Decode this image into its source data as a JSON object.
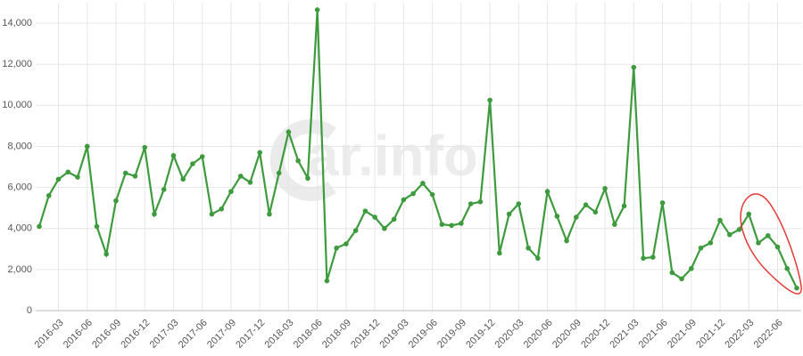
{
  "chart_data": {
    "type": "line",
    "watermark": "ar.info",
    "categories": [
      null,
      null,
      "2016-03",
      null,
      null,
      "2016-06",
      null,
      null,
      "2016-09",
      null,
      null,
      "2016-12",
      null,
      null,
      "2017-03",
      null,
      null,
      "2017-06",
      null,
      null,
      "2017-09",
      null,
      null,
      "2017-12",
      null,
      null,
      "2018-03",
      null,
      null,
      "2018-06",
      null,
      null,
      "2018-09",
      null,
      null,
      "2018-12",
      null,
      null,
      "2019-03",
      null,
      null,
      "2019-06",
      null,
      null,
      "2019-09",
      null,
      null,
      "2019-12",
      null,
      null,
      "2020-03",
      null,
      null,
      "2020-06",
      null,
      null,
      "2020-09",
      null,
      null,
      "2020-12",
      null,
      null,
      "2021-03",
      null,
      null,
      "2021-06",
      null,
      null,
      "2021-09",
      null,
      null,
      "2021-12",
      null,
      null,
      "2022-03",
      null,
      null,
      "2022-06",
      null,
      null
    ],
    "series": [
      {
        "color": "#3d9a3d",
        "values": [
          4100,
          5600,
          6400,
          6750,
          6500,
          8000,
          4100,
          2750,
          5350,
          6700,
          6550,
          7950,
          4700,
          5900,
          7550,
          6400,
          7150,
          7500,
          4700,
          4950,
          5800,
          6550,
          6250,
          7700,
          4700,
          6700,
          8700,
          7300,
          6450,
          14650,
          1450,
          3050,
          3250,
          3900,
          4850,
          4550,
          4000,
          4450,
          5400,
          5700,
          6200,
          5650,
          4200,
          4150,
          4250,
          5200,
          5300,
          10250,
          2800,
          4700,
          5200,
          3050,
          2550,
          5800,
          4600,
          3400,
          4550,
          5150,
          4800,
          5950,
          4200,
          5100,
          11850,
          2550,
          2600,
          5250,
          1850,
          1550,
          2050,
          3050,
          3300,
          4400,
          3700,
          3950,
          4700,
          3300,
          3650,
          3100,
          2050,
          1100
        ]
      }
    ],
    "ylim": [
      0,
      15000
    ],
    "yticks": [
      0,
      {
        "value": 2000,
        "label": "2,000"
      },
      {
        "value": 4000,
        "label": "4,000"
      },
      {
        "value": 6000,
        "label": "6,000"
      },
      {
        "value": 8000,
        "label": "8,000"
      },
      {
        "value": 10000,
        "label": "10,000"
      },
      {
        "value": 12000,
        "label": "12,000"
      },
      {
        "value": 14000,
        "label": "14,000"
      }
    ],
    "grid": true
  }
}
